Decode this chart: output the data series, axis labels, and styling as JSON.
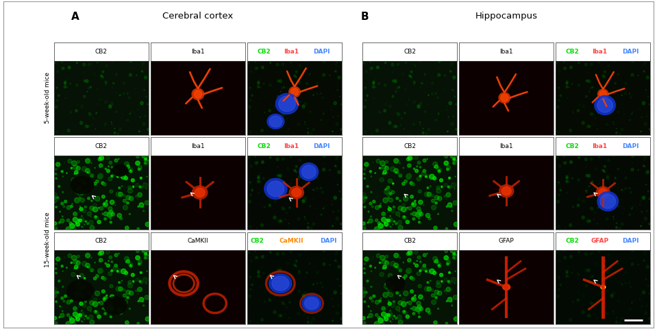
{
  "title_A": "A",
  "title_B": "B",
  "section_title_left": "Cerebral cortex",
  "section_title_right": "Hippocampus",
  "row_label_1": "5-week-old mice",
  "row_label_2": "15-week-old mice",
  "background_color": "#ffffff",
  "col_headers_row1_left": [
    "CB2",
    "Iba1",
    "CB2 Iba1 DAPI"
  ],
  "col_headers_row2_left": [
    "CB2",
    "Iba1",
    "CB2 Iba1 DAPI"
  ],
  "col_headers_row3_left": [
    "CB2",
    "CaMKII",
    "CB2 CaMKII DAPI"
  ],
  "col_headers_row1_right": [
    "CB2",
    "Iba1",
    "CB2 Iba1 DAPI"
  ],
  "col_headers_row2_right": [
    "CB2",
    "Iba1",
    "CB2 Iba1 DAPI"
  ],
  "col_headers_row3_right": [
    "CB2",
    "GFAP",
    "CB2 GFAP DAPI"
  ],
  "header3_colors_row1": [
    "#00dd00",
    "#ff4444",
    "#4488ff"
  ],
  "header3_colors_row2": [
    "#00dd00",
    "#ff4444",
    "#4488ff"
  ],
  "header3_colors_row3_left": [
    "#00dd00",
    "#ff8800",
    "#4488ff"
  ],
  "header3_colors_row3_right": [
    "#00dd00",
    "#ff4444",
    "#4488ff"
  ],
  "fig_width": 9.59,
  "fig_height": 4.8
}
